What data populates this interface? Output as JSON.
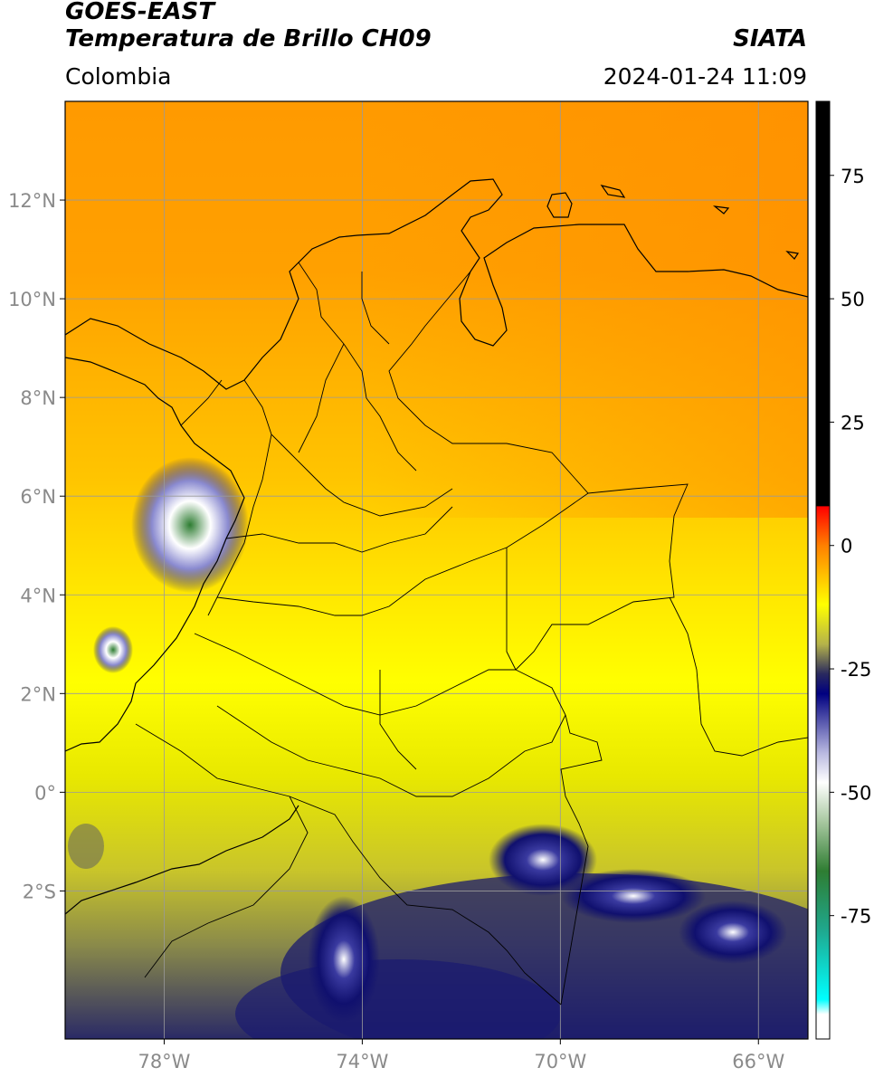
{
  "header": {
    "satellite": "GOES-EAST",
    "product": "Temperatura de Brillo CH09",
    "brand": "SIATA",
    "region": "Colombia",
    "timestamp": "2024-01-24 11:09"
  },
  "map": {
    "lon_range": [
      -80,
      -65
    ],
    "lat_range": [
      -5,
      14
    ],
    "lon_ticks": [
      {
        "value": -78,
        "label": "78°W"
      },
      {
        "value": -74,
        "label": "74°W"
      },
      {
        "value": -70,
        "label": "70°W"
      },
      {
        "value": -66,
        "label": "66°W"
      }
    ],
    "lat_ticks": [
      {
        "value": 12,
        "label": "12°N"
      },
      {
        "value": 10,
        "label": "10°N"
      },
      {
        "value": 8,
        "label": "8°N"
      },
      {
        "value": 6,
        "label": "6°N"
      },
      {
        "value": 4,
        "label": "4°N"
      },
      {
        "value": 2,
        "label": "2°N"
      },
      {
        "value": 0,
        "label": "0°"
      },
      {
        "value": -2,
        "label": "2°S"
      }
    ],
    "grid": true
  },
  "colorbar": {
    "range": [
      -100,
      90
    ],
    "ticks": [
      {
        "value": 75,
        "label": "75"
      },
      {
        "value": 50,
        "label": "50"
      },
      {
        "value": 25,
        "label": "25"
      },
      {
        "value": 0,
        "label": "0"
      },
      {
        "value": -25,
        "label": "-25"
      },
      {
        "value": -50,
        "label": "-50"
      },
      {
        "value": -75,
        "label": "-75"
      }
    ],
    "stops": [
      {
        "value": 90,
        "color": "#000000"
      },
      {
        "value": 8,
        "color": "#000000"
      },
      {
        "value": 7.9,
        "color": "#ff0000"
      },
      {
        "value": 0,
        "color": "#ff8000"
      },
      {
        "value": -12,
        "color": "#ffff00"
      },
      {
        "value": -20,
        "color": "#b5b34a"
      },
      {
        "value": -26,
        "color": "#2a2a5e"
      },
      {
        "value": -30,
        "color": "#000080"
      },
      {
        "value": -42,
        "color": "#b8b8e0"
      },
      {
        "value": -48,
        "color": "#ffffff"
      },
      {
        "value": -56,
        "color": "#a8c8a0"
      },
      {
        "value": -66,
        "color": "#2e7d32"
      },
      {
        "value": -78,
        "color": "#1fa88e"
      },
      {
        "value": -92,
        "color": "#00ffff"
      },
      {
        "value": -95,
        "color": "#ffffff"
      },
      {
        "value": -100,
        "color": "#ffffff"
      }
    ]
  },
  "colors": {
    "grid": "#9a9a9a",
    "tick_text": "#8a8a8a",
    "border": "#000000"
  }
}
